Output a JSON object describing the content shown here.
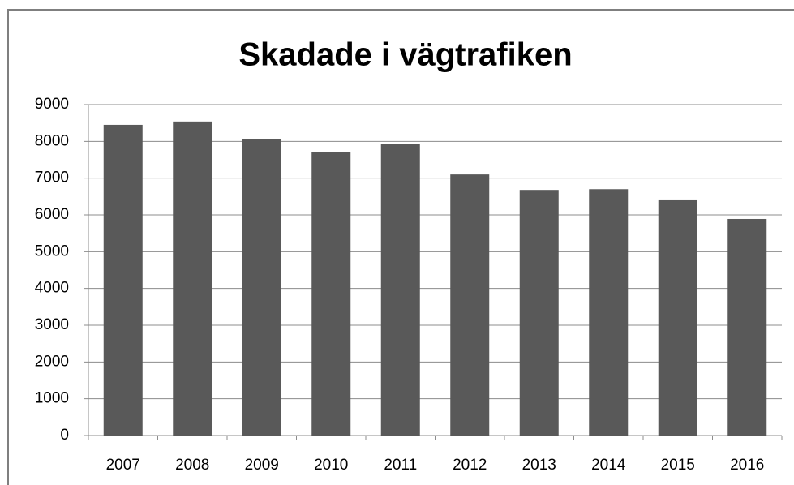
{
  "chart_data": {
    "type": "bar",
    "title": "Skadade i vägtrafiken",
    "categories": [
      "2007",
      "2008",
      "2009",
      "2010",
      "2011",
      "2012",
      "2013",
      "2014",
      "2015",
      "2016"
    ],
    "values": [
      8450,
      8540,
      8070,
      7700,
      7920,
      7100,
      6680,
      6700,
      6420,
      5890
    ],
    "color": "#595959",
    "ylim": [
      0,
      9000
    ],
    "yticks": [
      0,
      1000,
      2000,
      3000,
      4000,
      5000,
      6000,
      7000,
      8000,
      9000
    ],
    "grid": true
  }
}
